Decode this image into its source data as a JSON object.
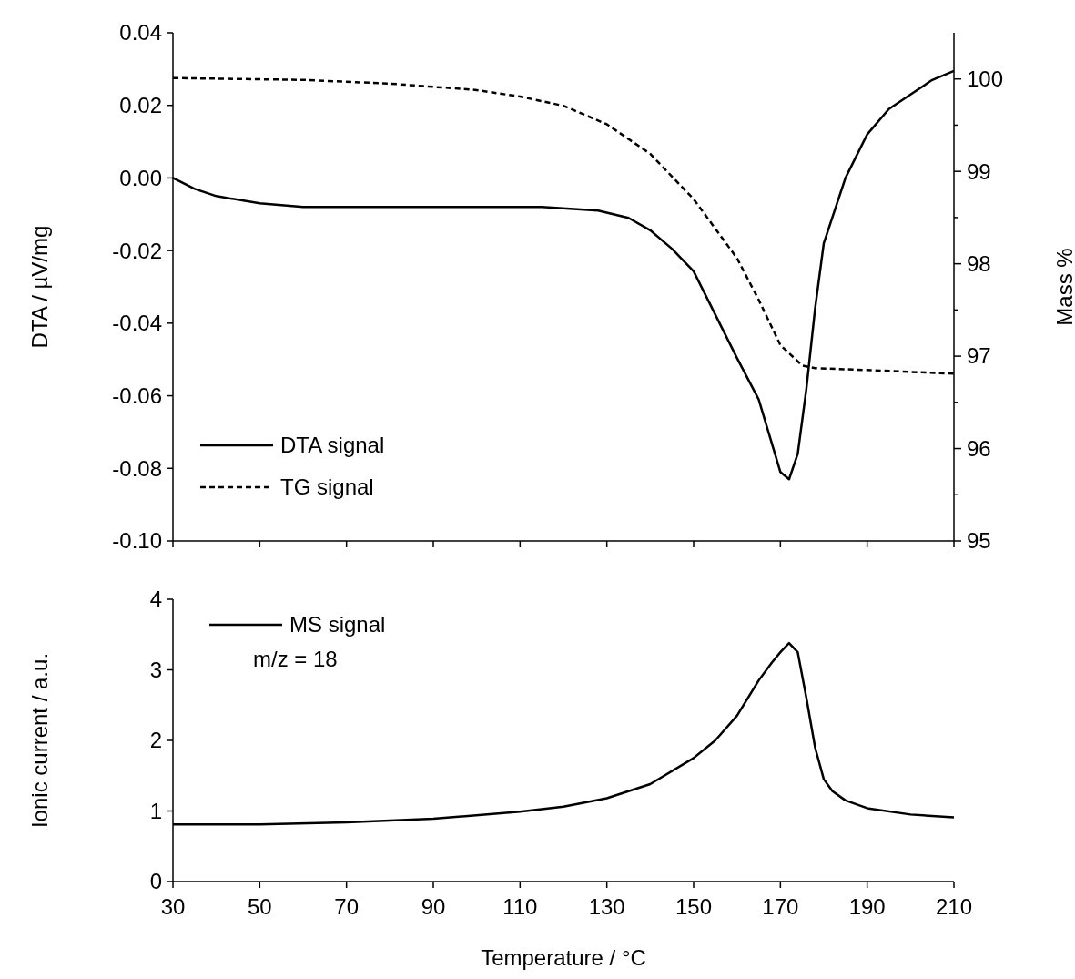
{
  "chart_data": [
    {
      "type": "line",
      "xlim": [
        30,
        210
      ],
      "xticks": [
        30,
        50,
        70,
        90,
        110,
        130,
        150,
        170,
        190,
        210
      ],
      "ylim": [
        -0.1,
        0.04
      ],
      "yticks": [
        {
          "value": -0.1,
          "label": "-0.10"
        },
        {
          "value": -0.08,
          "label": "-0.08"
        },
        {
          "value": -0.06,
          "label": "-0.06"
        },
        {
          "value": -0.04,
          "label": "-0.04"
        },
        {
          "value": -0.02,
          "label": "-0.02"
        },
        {
          "value": 0,
          "label": "0.00"
        },
        {
          "value": 0.02,
          "label": "0.02"
        },
        {
          "value": 0.04,
          "label": "0.04"
        }
      ],
      "y2lim": [
        95,
        100.5
      ],
      "y2ticks": [
        95,
        {
          "value": 95.5,
          "label": null
        },
        96,
        {
          "value": 96.5,
          "label": null
        },
        97,
        {
          "value": 97.5,
          "label": null
        },
        98,
        {
          "value": 98.5,
          "label": null
        },
        99,
        {
          "value": 99.5,
          "label": null
        },
        100
      ],
      "ylabel": "DTA / µV/mg",
      "y2label": "Mass %",
      "tick_labels": "y",
      "legend": "bottom left",
      "grid": false,
      "series": [
        {
          "name": "DTA signal",
          "color": "#000000",
          "line_style": "solid",
          "x": [
            30,
            35,
            40,
            50,
            60,
            80,
            100,
            115,
            128,
            135,
            140,
            145,
            150,
            160,
            165,
            170,
            172,
            174,
            176,
            178,
            180,
            185,
            190,
            195,
            200,
            205,
            210
          ],
          "values": [
            0,
            -0.003,
            -0.005,
            -0.007,
            -0.008,
            -0.008,
            -0.008,
            -0.008,
            -0.009,
            -0.011,
            -0.0144,
            -0.0195,
            -0.0257,
            -0.0496,
            -0.061,
            -0.081,
            -0.083,
            -0.076,
            -0.058,
            -0.036,
            -0.018,
            0,
            0.012,
            0.019,
            0.023,
            0.027,
            0.0295
          ]
        },
        {
          "name": "TG signal",
          "color": "#000000",
          "line_style": "dashed",
          "axis": "y2",
          "x": [
            30,
            60,
            80,
            100,
            110,
            120,
            130,
            140,
            150,
            160,
            165,
            170,
            175,
            178,
            190,
            210
          ],
          "values": [
            100.01,
            99.99,
            99.95,
            99.88,
            99.81,
            99.71,
            99.51,
            99.19,
            98.7,
            98.06,
            97.61,
            97.12,
            96.9,
            96.87,
            96.85,
            96.81
          ]
        }
      ]
    },
    {
      "type": "line",
      "xlim": [
        30,
        210
      ],
      "xticks": [
        30,
        50,
        70,
        90,
        110,
        130,
        150,
        170,
        190,
        210
      ],
      "ylim": [
        0,
        4
      ],
      "yticks": [
        0,
        1,
        2,
        3,
        4
      ],
      "xlabel": "Temperature / °C",
      "ylabel": "Ionic current / a.u.",
      "legend": "top left",
      "grid": false,
      "annotations": [
        "m/z = 18"
      ],
      "series": [
        {
          "name": "MS signal",
          "color": "#000000",
          "line_style": "solid",
          "x": [
            30,
            50,
            70,
            90,
            110,
            120,
            130,
            140,
            150,
            155,
            160,
            165,
            168,
            170,
            172,
            174,
            176,
            178,
            180,
            182,
            185,
            190,
            200,
            210
          ],
          "values": [
            0.81,
            0.81,
            0.84,
            0.89,
            0.99,
            1.06,
            1.18,
            1.38,
            1.75,
            2.0,
            2.35,
            2.85,
            3.1,
            3.25,
            3.38,
            3.25,
            2.6,
            1.9,
            1.45,
            1.28,
            1.15,
            1.04,
            0.95,
            0.91
          ]
        }
      ]
    }
  ]
}
